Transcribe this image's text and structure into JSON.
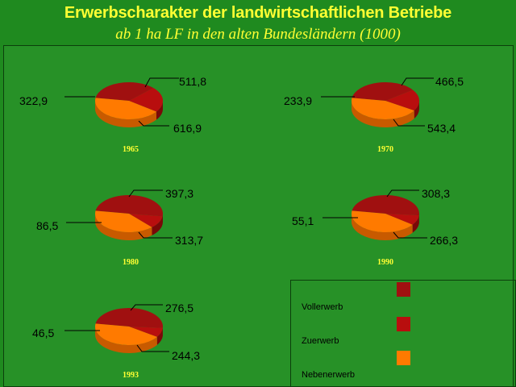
{
  "title": "Erwerbscharakter der landwirtschaftlichen Betriebe",
  "subtitle": "ab 1 ha LF in den alten Bundesländern (1000)",
  "colors": {
    "background": "#1f8a1f",
    "title": "#ffff33",
    "Vollerwerb": "#a01010",
    "Zuerwerb": "#b80e0e",
    "Nebenerwerb": "#ff7a00"
  },
  "legend": [
    {
      "label": "Vollerwerb",
      "color": "#a01010"
    },
    {
      "label": "Zuerwerb",
      "color": "#b80e0e"
    },
    {
      "label": "Nebenerwerb",
      "color": "#ff7a00"
    }
  ],
  "chart_data": {
    "type": "pie",
    "style": "3d",
    "categories": [
      "Vollerwerb",
      "Zuerwerb",
      "Nebenerwerb"
    ],
    "legend_position": "bottom-right",
    "series": [
      {
        "year": "1965",
        "values": [
          511.8,
          322.9,
          616.9
        ],
        "labels": [
          "511,8",
          "322,9",
          "616,9"
        ]
      },
      {
        "year": "1970",
        "values": [
          466.5,
          233.9,
          543.4
        ],
        "labels": [
          "466,5",
          "233,9",
          "543,4"
        ]
      },
      {
        "year": "1980",
        "values": [
          397.3,
          86.5,
          313.7
        ],
        "labels": [
          "397,3",
          "86,5",
          "313,7"
        ]
      },
      {
        "year": "1990",
        "values": [
          308.3,
          55.1,
          266.3
        ],
        "labels": [
          "308,3",
          "55,1",
          "266,3"
        ]
      },
      {
        "year": "1993",
        "values": [
          276.5,
          46.5,
          244.3
        ],
        "labels": [
          "276,5",
          "46,5",
          "244,3"
        ]
      }
    ]
  }
}
